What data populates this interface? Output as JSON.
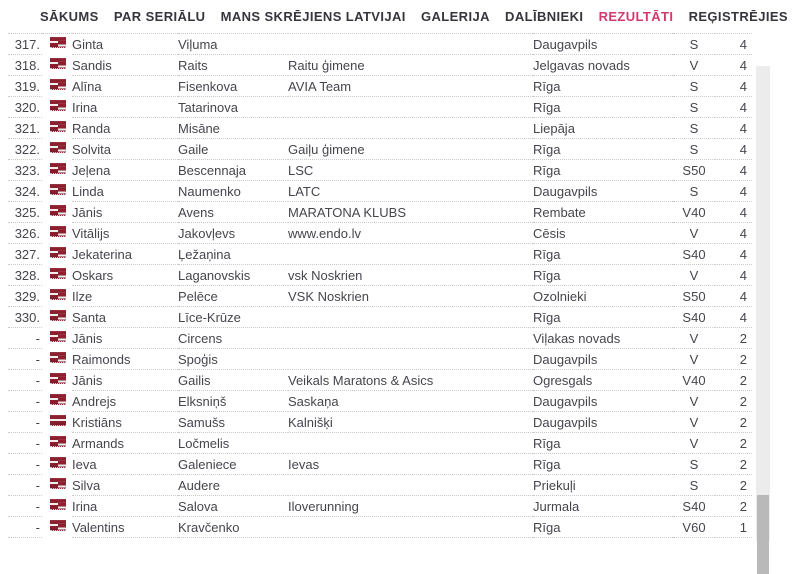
{
  "nav": {
    "items": [
      {
        "id": "sakums",
        "label": "SĀKUMS",
        "active": false
      },
      {
        "id": "par-serialu",
        "label": "PAR SERIĀLU",
        "active": false
      },
      {
        "id": "mans-skrejiens",
        "label": "MANS SKRĒJIENS LATVIJAI",
        "active": false
      },
      {
        "id": "galerija",
        "label": "GALERIJA",
        "active": false
      },
      {
        "id": "dalibnieki",
        "label": "DALĪBNIEKI",
        "active": false
      },
      {
        "id": "rezultati",
        "label": "REZULTĀTI",
        "active": true
      },
      {
        "id": "registrejies",
        "label": "REĢISTRĒJIES",
        "active": false
      }
    ]
  },
  "table": {
    "columns": [
      "place",
      "flag",
      "first_name",
      "last_name",
      "team",
      "city",
      "category",
      "count"
    ],
    "rows": [
      {
        "place": "317.",
        "flag": true,
        "first": "Ginta",
        "last": "Viļuma",
        "team": "",
        "city": "Daugavpils",
        "cat": "S",
        "count": "4"
      },
      {
        "place": "318.",
        "flag": true,
        "first": "Sandis",
        "last": "Raits",
        "team": "Raitu ģimene",
        "city": "Jelgavas novads",
        "cat": "V",
        "count": "4"
      },
      {
        "place": "319.",
        "flag": true,
        "first": "Alīna",
        "last": "Fisenkova",
        "team": "AVIA Team",
        "city": "Rīga",
        "cat": "S",
        "count": "4"
      },
      {
        "place": "320.",
        "flag": true,
        "first": "Irina",
        "last": "Tatarinova",
        "team": "",
        "city": "Rīga",
        "cat": "S",
        "count": "4"
      },
      {
        "place": "321.",
        "flag": true,
        "first": "Randa",
        "last": "Misāne",
        "team": "",
        "city": "Liepāja",
        "cat": "S",
        "count": "4"
      },
      {
        "place": "322.",
        "flag": true,
        "first": "Solvita",
        "last": "Gaile",
        "team": "Gaiļu ģimene",
        "city": "Rīga",
        "cat": "S",
        "count": "4"
      },
      {
        "place": "323.",
        "flag": true,
        "first": "Jeļena",
        "last": "Bescennaja",
        "team": "LSC",
        "city": "Rīga",
        "cat": "S50",
        "count": "4"
      },
      {
        "place": "324.",
        "flag": true,
        "first": "Linda",
        "last": "Naumenko",
        "team": "LATC",
        "city": "Daugavpils",
        "cat": "S",
        "count": "4"
      },
      {
        "place": "325.",
        "flag": true,
        "first": "Jānis",
        "last": "Avens",
        "team": "MARATONA KLUBS",
        "city": "Rembate",
        "cat": "V40",
        "count": "4"
      },
      {
        "place": "326.",
        "flag": true,
        "first": "Vitālijs",
        "last": "Jakovļevs",
        "team": "www.endo.lv",
        "city": "Cēsis",
        "cat": "V",
        "count": "4"
      },
      {
        "place": "327.",
        "flag": true,
        "first": "Jekaterina",
        "last": "Ļežaņina",
        "team": "",
        "city": "Rīga",
        "cat": "S40",
        "count": "4"
      },
      {
        "place": "328.",
        "flag": true,
        "first": "Oskars",
        "last": "Laganovskis",
        "team": "vsk Noskrien",
        "city": "Rīga",
        "cat": "V",
        "count": "4"
      },
      {
        "place": "329.",
        "flag": true,
        "first": "Ilze",
        "last": "Pelēce",
        "team": "VSK Noskrien",
        "city": "Ozolnieki",
        "cat": "S50",
        "count": "4"
      },
      {
        "place": "330.",
        "flag": true,
        "first": "Santa",
        "last": "Līce-Krūze",
        "team": "",
        "city": "Rīga",
        "cat": "S40",
        "count": "4"
      },
      {
        "place": "-",
        "flag": true,
        "first": "Jānis",
        "last": "Circens",
        "team": "",
        "city": "Viļakas novads",
        "cat": "V",
        "count": "2"
      },
      {
        "place": "-",
        "flag": true,
        "first": "Raimonds",
        "last": "Spoģis",
        "team": "",
        "city": "Daugavpils",
        "cat": "V",
        "count": "2"
      },
      {
        "place": "-",
        "flag": true,
        "first": "Jānis",
        "last": "Gailis",
        "team": "Veikals Maratons & Asics",
        "city": "Ogresgals",
        "cat": "V40",
        "count": "2"
      },
      {
        "place": "-",
        "flag": true,
        "first": "Andrejs",
        "last": "Elksniņš",
        "team": "Saskaņa",
        "city": "Daugavpils",
        "cat": "V",
        "count": "2"
      },
      {
        "place": "-",
        "flag": false,
        "first": "Kristiāns",
        "last": "Samušs",
        "team": "Kalnišķi",
        "city": "Daugavpils",
        "cat": "V",
        "count": "2"
      },
      {
        "place": "-",
        "flag": true,
        "first": "Armands",
        "last": "Ločmelis",
        "team": "",
        "city": "Rīga",
        "cat": "V",
        "count": "2"
      },
      {
        "place": "-",
        "flag": true,
        "first": "Ieva",
        "last": "Galeniece",
        "team": "Ievas",
        "city": "Rīga",
        "cat": "S",
        "count": "2"
      },
      {
        "place": "-",
        "flag": true,
        "first": "Silva",
        "last": "Audere",
        "team": "",
        "city": "Priekuļi",
        "cat": "S",
        "count": "2"
      },
      {
        "place": "-",
        "flag": true,
        "first": "Irina",
        "last": "Salova",
        "team": "Iloverunning",
        "city": "Jurmala",
        "cat": "S40",
        "count": "2"
      },
      {
        "place": "-",
        "flag": true,
        "first": "Valentins",
        "last": "Kravčenko",
        "team": "",
        "city": "Rīga",
        "cat": "V60",
        "count": "1"
      }
    ]
  },
  "icons": {
    "flag": "latvia-flag-icon"
  },
  "colors": {
    "accent_pink": "#d13a6a",
    "nav_text": "#35353d",
    "table_text": "#45454d",
    "flag_red": "#8e1f2f",
    "row_border": "#c9c9c9",
    "scroll_thumb": "#b9b9b9",
    "scroll_track": "#ececec"
  }
}
